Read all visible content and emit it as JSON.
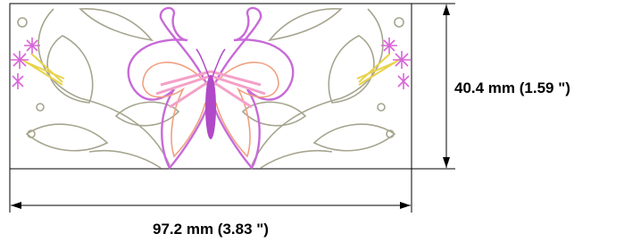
{
  "dimensions": {
    "width": "97.2 mm (3.83 \")",
    "height": "40.4 mm (1.59 \")"
  }
}
